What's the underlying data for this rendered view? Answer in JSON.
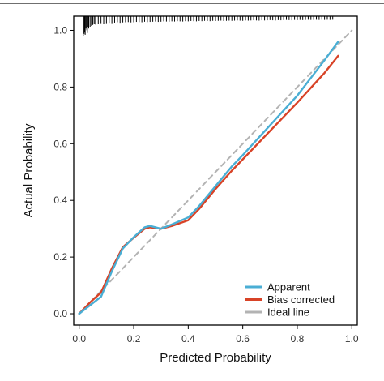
{
  "chart_data": {
    "type": "line",
    "title": "",
    "xlabel": "Predicted Probability",
    "ylabel": "Actual Probability",
    "xlim": [
      -0.02,
      1.02
    ],
    "ylim": [
      -0.04,
      1.05
    ],
    "xticks": [
      {
        "value": 0.0,
        "label": "0.0"
      },
      {
        "value": 0.2,
        "label": "0.2"
      },
      {
        "value": 0.4,
        "label": "0.4"
      },
      {
        "value": 0.6,
        "label": "0.6"
      },
      {
        "value": 0.8,
        "label": "0.8"
      },
      {
        "value": 1.0,
        "label": "1.0"
      }
    ],
    "yticks": [
      {
        "value": 0.0,
        "label": "0.0"
      },
      {
        "value": 0.2,
        "label": "0.2"
      },
      {
        "value": 0.4,
        "label": "0.4"
      },
      {
        "value": 0.6,
        "label": "0.6"
      },
      {
        "value": 0.8,
        "label": "0.8"
      },
      {
        "value": 1.0,
        "label": "1.0"
      }
    ],
    "grid": false,
    "legend_position": "bottom-right",
    "series": [
      {
        "name": "Apparent",
        "color": "#4aaed4",
        "style": "solid",
        "x": [
          0.0,
          0.04,
          0.08,
          0.12,
          0.16,
          0.2,
          0.24,
          0.26,
          0.3,
          0.34,
          0.4,
          0.44,
          0.5,
          0.56,
          0.6,
          0.7,
          0.8,
          0.9,
          0.95
        ],
        "y": [
          0.0,
          0.03,
          0.06,
          0.15,
          0.23,
          0.27,
          0.305,
          0.31,
          0.3,
          0.315,
          0.34,
          0.38,
          0.45,
          0.52,
          0.56,
          0.665,
          0.77,
          0.895,
          0.96
        ]
      },
      {
        "name": "Bias corrected",
        "color": "#d84327",
        "style": "solid",
        "x": [
          0.0,
          0.04,
          0.08,
          0.12,
          0.16,
          0.2,
          0.24,
          0.26,
          0.3,
          0.34,
          0.4,
          0.44,
          0.5,
          0.56,
          0.6,
          0.7,
          0.8,
          0.9,
          0.95
        ],
        "y": [
          0.0,
          0.04,
          0.075,
          0.16,
          0.235,
          0.268,
          0.3,
          0.305,
          0.3,
          0.31,
          0.33,
          0.37,
          0.44,
          0.505,
          0.545,
          0.645,
          0.745,
          0.85,
          0.91
        ]
      },
      {
        "name": "Ideal line",
        "color": "#b3b3b3",
        "style": "dashed",
        "x": [
          0.0,
          1.0
        ],
        "y": [
          0.0,
          1.0
        ]
      }
    ],
    "rug": {
      "position": "top",
      "color": "#000000",
      "x": [
        0.015,
        0.018,
        0.02,
        0.022,
        0.025,
        0.028,
        0.03,
        0.033,
        0.035,
        0.04,
        0.045,
        0.05,
        0.055,
        0.06,
        0.07,
        0.08,
        0.09,
        0.1,
        0.11,
        0.12,
        0.13,
        0.14,
        0.15,
        0.16,
        0.17,
        0.18,
        0.19,
        0.2,
        0.21,
        0.22,
        0.23,
        0.24,
        0.25,
        0.26,
        0.27,
        0.28,
        0.29,
        0.3,
        0.31,
        0.32,
        0.33,
        0.34,
        0.35,
        0.36,
        0.37,
        0.38,
        0.39,
        0.4,
        0.41,
        0.42,
        0.43,
        0.44,
        0.45,
        0.46,
        0.47,
        0.48,
        0.49,
        0.5,
        0.51,
        0.52,
        0.53,
        0.54,
        0.55,
        0.56,
        0.57,
        0.58,
        0.59,
        0.6,
        0.61,
        0.62,
        0.63,
        0.64,
        0.65,
        0.66,
        0.67,
        0.68,
        0.69,
        0.7,
        0.71,
        0.72,
        0.73,
        0.74,
        0.75,
        0.76,
        0.77,
        0.78,
        0.79,
        0.8,
        0.81,
        0.82,
        0.83,
        0.84,
        0.85,
        0.86,
        0.87,
        0.88,
        0.89,
        0.9,
        0.91,
        0.92,
        0.93
      ],
      "density": [
        1.0,
        0.9,
        0.8,
        0.95,
        0.6,
        0.7,
        0.85,
        0.5,
        0.6,
        0.5,
        0.45,
        0.4,
        0.35,
        0.38,
        0.35,
        0.3,
        0.32,
        0.3,
        0.28,
        0.3,
        0.27,
        0.25,
        0.28,
        0.26,
        0.25,
        0.24,
        0.26,
        0.25,
        0.23,
        0.24,
        0.25,
        0.22,
        0.24,
        0.23,
        0.22,
        0.21,
        0.23,
        0.22,
        0.2,
        0.21,
        0.22,
        0.2,
        0.21,
        0.19,
        0.2,
        0.21,
        0.19,
        0.2,
        0.18,
        0.19,
        0.2,
        0.18,
        0.19,
        0.17,
        0.18,
        0.19,
        0.17,
        0.18,
        0.17,
        0.16,
        0.18,
        0.17,
        0.16,
        0.17,
        0.16,
        0.15,
        0.16,
        0.17,
        0.15,
        0.16,
        0.15,
        0.14,
        0.15,
        0.16,
        0.14,
        0.15,
        0.14,
        0.13,
        0.14,
        0.15,
        0.13,
        0.14,
        0.13,
        0.12,
        0.13,
        0.14,
        0.12,
        0.13,
        0.12,
        0.13,
        0.12,
        0.11,
        0.12,
        0.12,
        0.11,
        0.12,
        0.11,
        0.12,
        0.11,
        0.12,
        0.11
      ]
    }
  }
}
